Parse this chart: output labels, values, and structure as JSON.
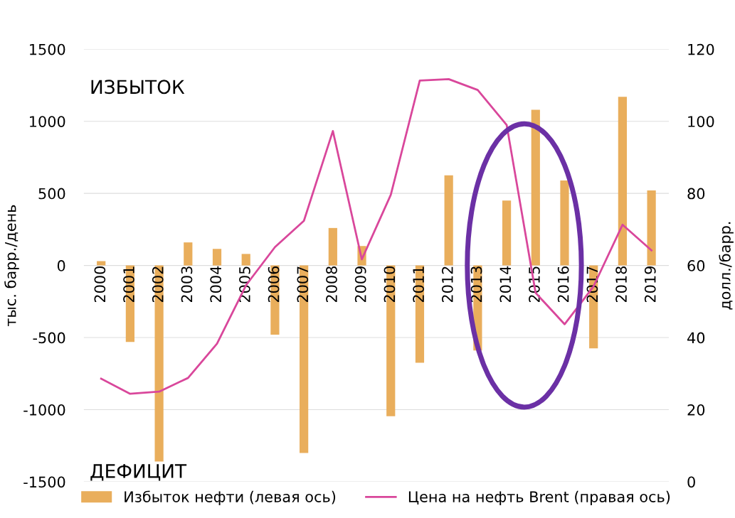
{
  "chart_data": {
    "type": "bar",
    "ylabel": "тыс. барр./день",
    "y2label": "долл./барр.",
    "categories": [
      "2000",
      "2001",
      "2002",
      "2003",
      "2004",
      "2005",
      "2006",
      "2007",
      "2008",
      "2009",
      "2010",
      "2011",
      "2012",
      "2013",
      "2014",
      "2015",
      "2016",
      "2017",
      "2018",
      "2019"
    ],
    "series": [
      {
        "name": "Избыток нефти (левая ось)",
        "color": "#e9ae5c",
        "values": [
          30,
          -530,
          -1360,
          160,
          115,
          80,
          -480,
          -1300,
          260,
          135,
          -1045,
          -675,
          625,
          -590,
          450,
          1080,
          590,
          -575,
          1170,
          520
        ]
      },
      {
        "name": "Цена на нефть Brent (правая ось)",
        "type": "line",
        "axis": "y2",
        "color": "#d9479b",
        "values": [
          28.6,
          24.4,
          25.0,
          28.8,
          38.3,
          54.5,
          65.1,
          72.4,
          97.3,
          61.7,
          79.6,
          111.3,
          111.7,
          108.7,
          99.0,
          52.4,
          43.7,
          54.2,
          71.3,
          64.2
        ]
      }
    ],
    "ylim": [
      -1500,
      1500
    ],
    "yticks": [
      -1500,
      -1000,
      -500,
      0,
      500,
      1000,
      1500
    ],
    "y2lim": [
      0,
      120
    ],
    "y2ticks": [
      0,
      20,
      40,
      60,
      80,
      100,
      120
    ],
    "annotations": [
      "ИЗБЫТОК",
      "ДЕФИЦИТ"
    ],
    "grid": "y",
    "legend": "bottom"
  }
}
